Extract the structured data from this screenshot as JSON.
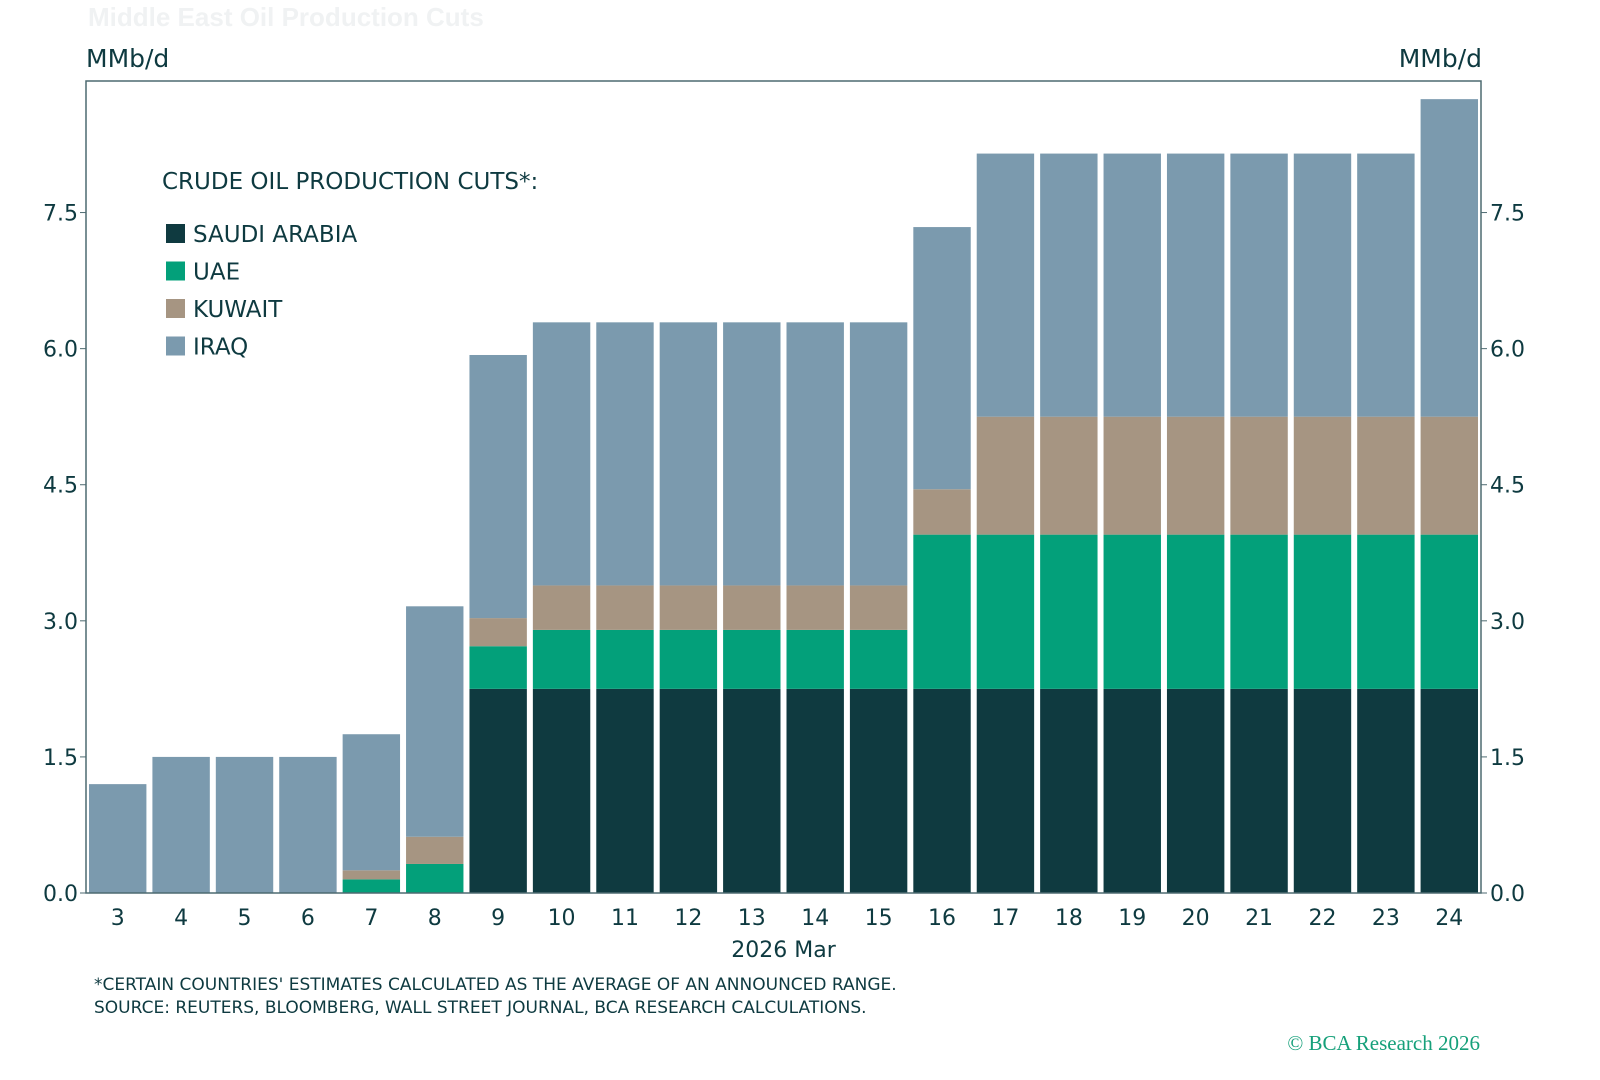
{
  "chart_data": {
    "type": "bar",
    "stacked": true,
    "title": "Middle East Oil Production Cuts",
    "ylabel_left": "MMb/d",
    "ylabel_right": "MMb/d",
    "xlabel": "2026 Mar",
    "ylim": [
      0,
      8.95
    ],
    "yticks": [
      "0.0",
      "1.5",
      "3.0",
      "4.5",
      "6.0",
      "7.5"
    ],
    "grid": false,
    "legend_title": "CRUDE OIL PRODUCTION CUTS*:",
    "legend_position": "top-left",
    "categories": [
      "3",
      "4",
      "5",
      "6",
      "7",
      "8",
      "9",
      "10",
      "11",
      "12",
      "13",
      "14",
      "15",
      "16",
      "17",
      "18",
      "19",
      "20",
      "21",
      "22",
      "23",
      "24"
    ],
    "series": [
      {
        "name": "SAUDI ARABIA",
        "color": "#0f3a40",
        "values": [
          0,
          0,
          0,
          0,
          0,
          0,
          2.25,
          2.25,
          2.25,
          2.25,
          2.25,
          2.25,
          2.25,
          2.25,
          2.25,
          2.25,
          2.25,
          2.25,
          2.25,
          2.25,
          2.25,
          2.25
        ]
      },
      {
        "name": "UAE",
        "color": "#03a07a",
        "values": [
          0,
          0,
          0,
          0,
          0.15,
          0.32,
          0.47,
          0.65,
          0.65,
          0.65,
          0.65,
          0.65,
          0.65,
          1.7,
          1.7,
          1.7,
          1.7,
          1.7,
          1.7,
          1.7,
          1.7,
          1.7
        ]
      },
      {
        "name": "KUWAIT",
        "color": "#a69582",
        "values": [
          0,
          0,
          0,
          0,
          0.1,
          0.3,
          0.31,
          0.49,
          0.49,
          0.49,
          0.49,
          0.49,
          0.49,
          0.5,
          1.3,
          1.3,
          1.3,
          1.3,
          1.3,
          1.3,
          1.3,
          1.3
        ]
      },
      {
        "name": "IRAQ",
        "color": "#7b9aae",
        "values": [
          1.2,
          1.5,
          1.5,
          1.5,
          1.5,
          2.54,
          2.9,
          2.9,
          2.9,
          2.9,
          2.9,
          2.9,
          2.9,
          2.89,
          2.9,
          2.9,
          2.9,
          2.9,
          2.9,
          2.9,
          2.9,
          3.5
        ]
      }
    ]
  },
  "footnote": "*CERTAIN COUNTRIES' ESTIMATES CALCULATED AS THE AVERAGE OF AN ANNOUNCED RANGE.",
  "source": "SOURCE: REUTERS, BLOOMBERG, WALL STREET JOURNAL, BCA RESEARCH CALCULATIONS.",
  "logo": "© BCA Research 2026"
}
